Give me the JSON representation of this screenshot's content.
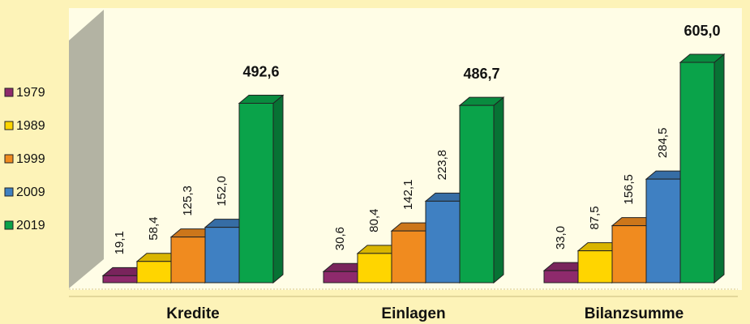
{
  "chart_data": {
    "type": "bar3d",
    "categories": [
      "Kredite",
      "Einlagen",
      "Bilanzsumme"
    ],
    "series": [
      {
        "name": "1979",
        "color": "#8e2a6c",
        "values": [
          19.1,
          30.6,
          33.0
        ],
        "value_labels": [
          "19,1",
          "30,6",
          "33,0"
        ]
      },
      {
        "name": "1989",
        "color": "#ffd500",
        "values": [
          58.4,
          80.4,
          87.5
        ],
        "value_labels": [
          "58,4",
          "80,4",
          "87,5"
        ]
      },
      {
        "name": "1999",
        "color": "#f08b1f",
        "values": [
          125.3,
          142.1,
          156.5
        ],
        "value_labels": [
          "125,3",
          "142,1",
          "156,5"
        ]
      },
      {
        "name": "2009",
        "color": "#3f80c2",
        "values": [
          152.0,
          223.8,
          284.5
        ],
        "value_labels": [
          "152,0",
          "223,8",
          "284,5"
        ]
      },
      {
        "name": "2019",
        "color": "#0aa34a",
        "values": [
          492.6,
          486.7,
          605.0
        ],
        "value_labels": [
          "492,6",
          "486,7",
          "605,0"
        ]
      }
    ],
    "legend": "left"
  }
}
